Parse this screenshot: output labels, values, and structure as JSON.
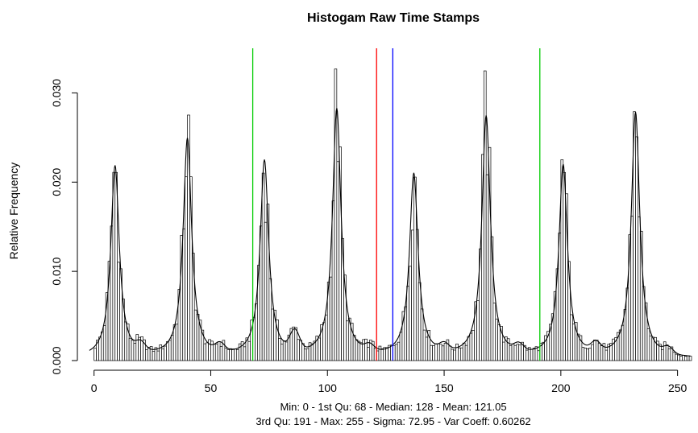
{
  "chart_data": {
    "type": "bar",
    "title": "Histogam Raw Time Stamps",
    "xlabel": "",
    "ylabel": "Relative Frequency",
    "subtitle_lines": [
      "Min: 0 - 1st Qu: 68 - Median: 128 - Mean: 121.05",
      "3rd Qu: 191 - Max: 255 - Sigma: 72.95 - Var Coeff: 0.60262"
    ],
    "xlim": [
      -3,
      256
    ],
    "ylim": [
      0,
      0.035
    ],
    "x_ticks": [
      0,
      50,
      100,
      150,
      200,
      250
    ],
    "y_ticks": [
      0.0,
      0.01,
      0.02,
      0.03
    ],
    "y_tick_labels": [
      "0.000",
      "0.010",
      "0.020",
      "0.030"
    ],
    "grid": false,
    "reference_lines": [
      {
        "x": 68,
        "color": "#00cc00"
      },
      {
        "x": 121.05,
        "color": "#ff0000"
      },
      {
        "x": 128,
        "color": "#0000ff"
      },
      {
        "x": 191,
        "color": "#00cc00"
      }
    ],
    "peak_model": {
      "peaks": [
        {
          "center": 9,
          "height": 0.0215
        },
        {
          "center": 40,
          "height": 0.0245
        },
        {
          "center": 73,
          "height": 0.022
        },
        {
          "center": 104,
          "height": 0.0278
        },
        {
          "center": 137,
          "height": 0.0205
        },
        {
          "center": 168,
          "height": 0.027
        },
        {
          "center": 201,
          "height": 0.0215
        },
        {
          "center": 232,
          "height": 0.0275
        }
      ],
      "bumps": [
        {
          "center": 20,
          "height": 0.0009
        },
        {
          "center": 54,
          "height": 0.0009
        },
        {
          "center": 86,
          "height": 0.0022
        },
        {
          "center": 118,
          "height": 0.0007
        },
        {
          "center": 150,
          "height": 0.0008
        },
        {
          "center": 182,
          "height": 0.0008
        },
        {
          "center": 215,
          "height": 0.001
        },
        {
          "center": 246,
          "height": 0.0007
        }
      ]
    },
    "bar_color": "#ffffff",
    "bar_edge": "#000000",
    "density_color": "#000000"
  }
}
